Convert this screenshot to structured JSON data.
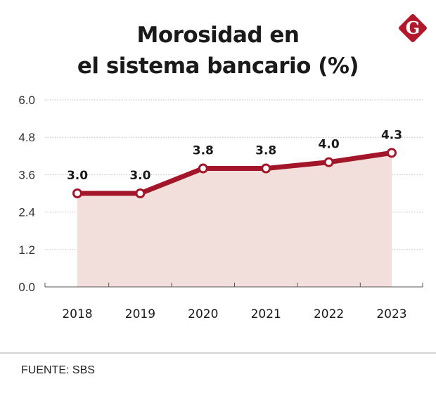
{
  "title_lines": [
    "Morosidad en",
    "el sistema bancario (%)"
  ],
  "logo": {
    "icon": "g-logo-icon",
    "letter": "G",
    "color": "#b3172c"
  },
  "source": "FUENTE: SBS",
  "colors": {
    "line": "#a3162a",
    "area": "#f2dedb",
    "grid": "#bdbdbd",
    "axis": "#555555",
    "text": "#1a1a1a"
  },
  "chart_data": {
    "type": "area",
    "title": "Morosidad en el sistema bancario (%)",
    "xlabel": "",
    "ylabel": "",
    "categories": [
      "2018",
      "2019",
      "2020",
      "2021",
      "2022",
      "2023"
    ],
    "values": [
      3.0,
      3.0,
      3.8,
      3.8,
      4.0,
      4.3
    ],
    "data_labels": [
      "3.0",
      "3.0",
      "3.8",
      "3.8",
      "4.0",
      "4.3"
    ],
    "ylim": [
      0,
      6.0
    ],
    "yticks": [
      0.0,
      1.2,
      2.4,
      3.6,
      4.8,
      6.0
    ],
    "ytick_labels": [
      "0.0",
      "1.2",
      "2.4",
      "3.6",
      "4.8",
      "6.0"
    ],
    "grid": true,
    "legend": "none",
    "markers": "hollow-circle"
  }
}
